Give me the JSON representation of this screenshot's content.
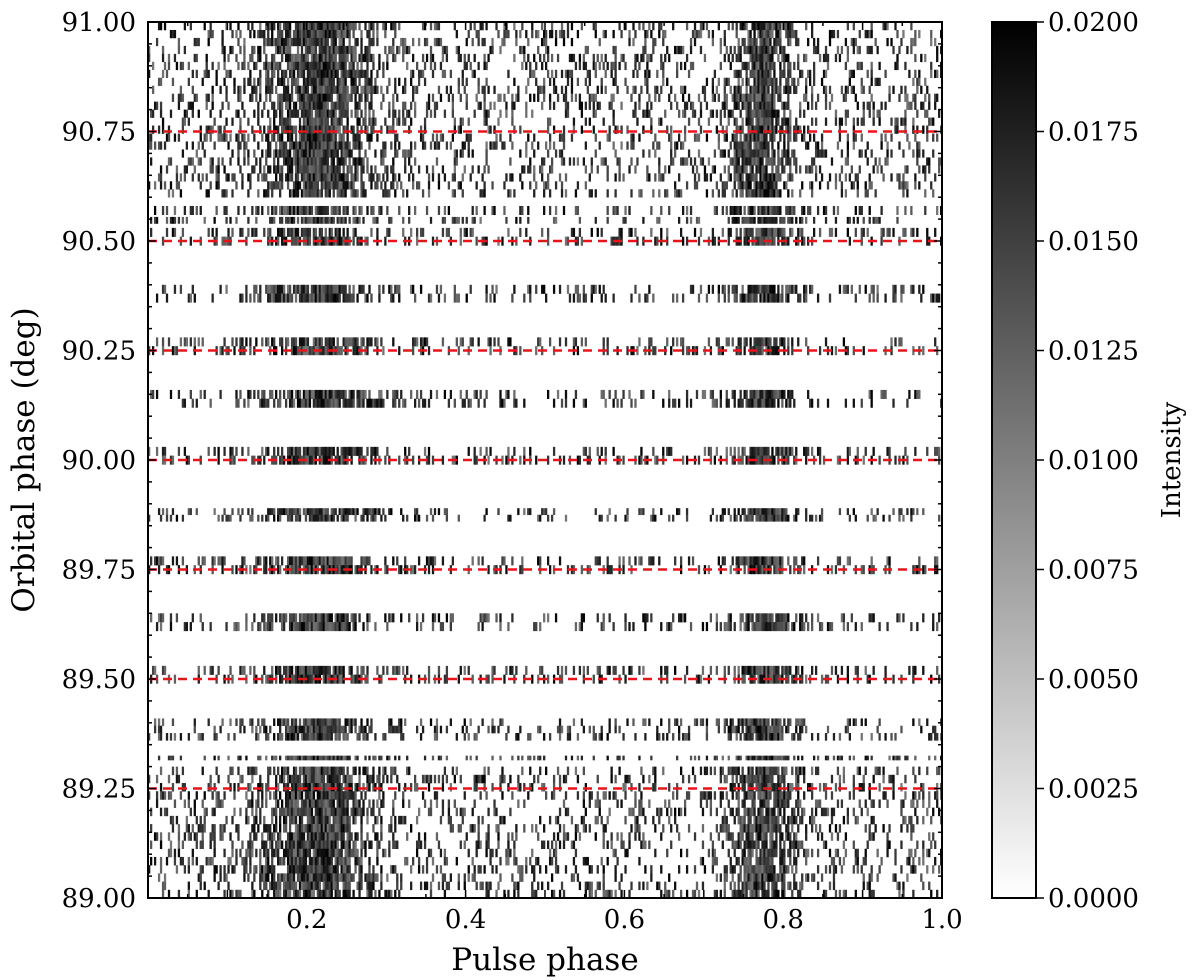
{
  "chart_data": {
    "type": "heatmap",
    "title": "",
    "xlabel": "Pulse phase",
    "ylabel": "Orbital phase (deg)",
    "colorbar_label": "Intensity",
    "xlim": [
      0.0,
      1.0
    ],
    "ylim": [
      89.0,
      91.0
    ],
    "x_ticks": [
      0.2,
      0.4,
      0.6,
      0.8,
      1.0
    ],
    "x_tick_labels": [
      "0.2",
      "0.4",
      "0.6",
      "0.8",
      "1.0"
    ],
    "y_ticks": [
      89.0,
      89.25,
      89.5,
      89.75,
      90.0,
      90.25,
      90.5,
      90.75,
      91.0
    ],
    "y_tick_labels": [
      "89.00",
      "89.25",
      "89.50",
      "89.75",
      "90.00",
      "90.25",
      "90.50",
      "90.75",
      "91.00"
    ],
    "colorbar_range": [
      0.0,
      0.02
    ],
    "colorbar_ticks": [
      0.0,
      0.0025,
      0.005,
      0.0075,
      0.01,
      0.0125,
      0.015,
      0.0175,
      0.02
    ],
    "colorbar_tick_labels": [
      "0.0000",
      "0.0025",
      "0.0050",
      "0.0075",
      "0.0100",
      "0.0125",
      "0.0150",
      "0.0175",
      "0.0200"
    ],
    "colormap": "gray_r",
    "pulse_peaks": [
      {
        "center": 0.215,
        "width": 0.045
      },
      {
        "center": 0.775,
        "width": 0.025
      }
    ],
    "observed_bands": [
      [
        89.0,
        89.3
      ],
      [
        89.315,
        89.325
      ],
      [
        89.36,
        89.41
      ],
      [
        89.49,
        89.53
      ],
      [
        89.61,
        89.65
      ],
      [
        89.74,
        89.78
      ],
      [
        89.86,
        89.89
      ],
      [
        89.99,
        90.03
      ],
      [
        90.12,
        90.16
      ],
      [
        90.24,
        90.28
      ],
      [
        90.36,
        90.4
      ],
      [
        90.49,
        90.53
      ],
      [
        90.54,
        90.555
      ],
      [
        90.56,
        90.58
      ],
      [
        90.6,
        91.0
      ]
    ],
    "reference_lines": [
      89.25,
      89.5,
      89.75,
      90.0,
      90.25,
      90.5,
      90.75
    ],
    "reference_line_color": "#e8141c"
  }
}
